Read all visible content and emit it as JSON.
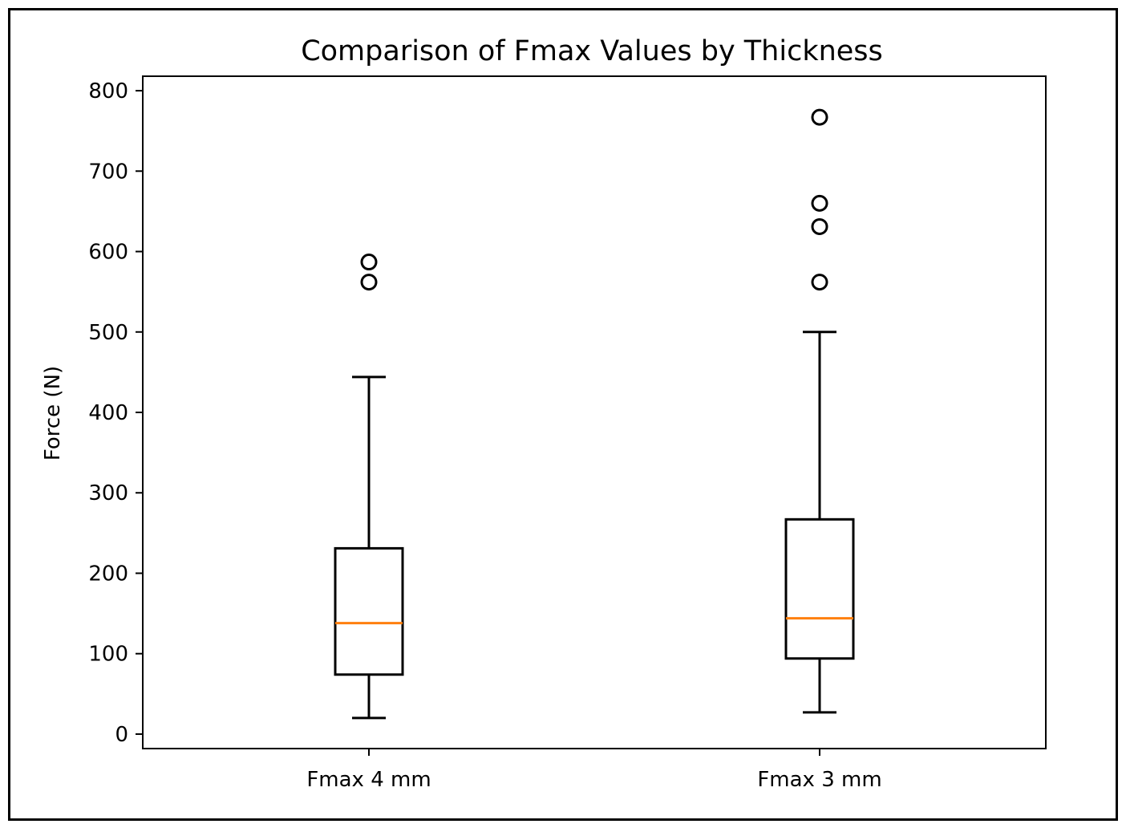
{
  "chart_data": {
    "type": "box",
    "title": "Comparison of Fmax Values by Thickness",
    "xlabel": "",
    "ylabel": "Force (N)",
    "ylim": [
      -18,
      818
    ],
    "yticks": [
      0,
      100,
      200,
      300,
      400,
      500,
      600,
      700,
      800
    ],
    "grid": false,
    "categories": [
      "Fmax 4 mm",
      "Fmax 3 mm"
    ],
    "boxes": [
      {
        "label": "Fmax 4 mm",
        "whisker_low": 20,
        "q1": 74,
        "median": 138,
        "q3": 231,
        "whisker_high": 444,
        "outliers": [
          562,
          587
        ]
      },
      {
        "label": "Fmax 3 mm",
        "whisker_low": 27,
        "q1": 94,
        "median": 144,
        "q3": 267,
        "whisker_high": 500,
        "outliers": [
          562,
          631,
          660,
          767
        ]
      }
    ],
    "colors": {
      "box": "#000000",
      "median": "#ff7f0e",
      "outlier": "#000000"
    }
  }
}
